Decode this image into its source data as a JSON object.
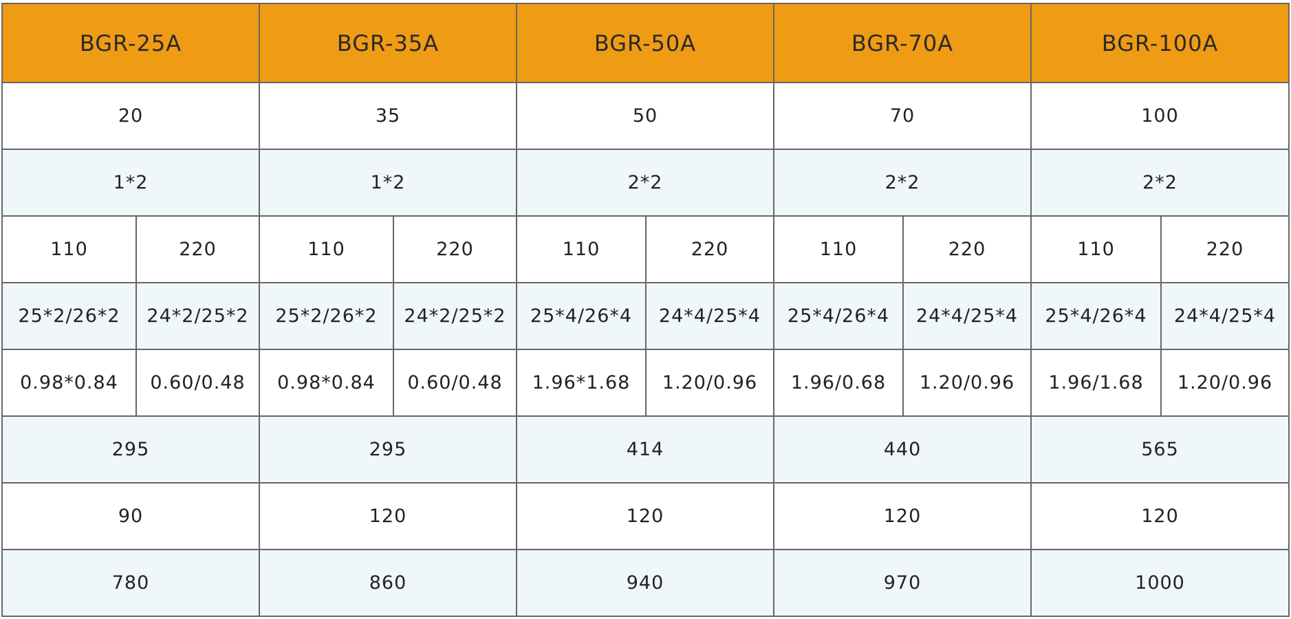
{
  "table": {
    "header": [
      "BGR-25A",
      "BGR-35A",
      "BGR-50A",
      "BGR-70A",
      "BGR-100A"
    ],
    "rows": [
      [
        "20",
        "35",
        "50",
        "70",
        "100"
      ],
      [
        "1*2",
        "1*2",
        "2*2",
        "2*2",
        "2*2"
      ],
      [
        "110",
        "220",
        "110",
        "220",
        "110",
        "220",
        "110",
        "220",
        "110",
        "220"
      ],
      [
        "25*2/26*2",
        "24*2/25*2",
        "25*2/26*2",
        "24*2/25*2",
        "25*4/26*4",
        "24*4/25*4",
        "25*4/26*4",
        "24*4/25*4",
        "25*4/26*4",
        "24*4/25*4"
      ],
      [
        "0.98*0.84",
        "0.60/0.48",
        "0.98*0.84",
        "0.60/0.48",
        "1.96*1.68",
        "1.20/0.96",
        "1.96/0.68",
        "1.20/0.96",
        "1.96/1.68",
        "1.20/0.96"
      ],
      [
        "295",
        "295",
        "414",
        "440",
        "565"
      ],
      [
        "90",
        "120",
        "120",
        "120",
        "120"
      ],
      [
        "780",
        "860",
        "940",
        "970",
        "1000"
      ]
    ]
  }
}
